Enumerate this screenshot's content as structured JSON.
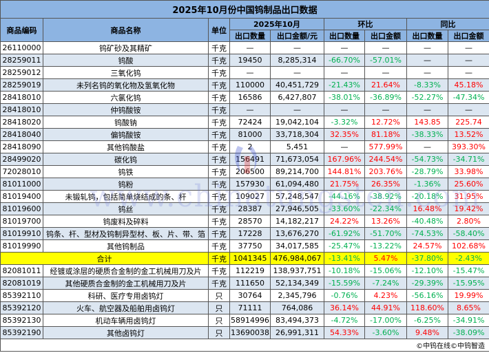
{
  "title": "2025年10月份中国钨制品出口数据",
  "headers": {
    "code": "商品编码",
    "name": "商品名称",
    "unit": "单位",
    "period": "2025年10月",
    "mom": "环比",
    "yoy": "同比",
    "qty": "出口数量",
    "amount": "出口金额/元",
    "qty2": "出口数量",
    "amount2": "出口金额"
  },
  "colors": {
    "header": "#8db4e2",
    "alt_row": "#dce6f1",
    "total_row": "#ffff00",
    "negative": "#00b050",
    "positive": "#ff0000"
  },
  "rows": [
    [
      "26110000",
      "钨矿砂及其精矿",
      "千克",
      "—",
      "—",
      "—",
      "—",
      "—",
      "—"
    ],
    [
      "28259011",
      "钨酸",
      "千克",
      "19450",
      "8,285,314",
      "-66.70%",
      "-57.01%",
      "—",
      "—"
    ],
    [
      "28259012",
      "三氧化钨",
      "千克",
      "—",
      "—",
      "—",
      "—",
      "—",
      "—"
    ],
    [
      "28259019",
      "未列名钨的氧化物及氢氧化物",
      "千克",
      "110000",
      "40,451,729",
      "-21.43%",
      "21.64%",
      "-8.33%",
      "45.18%"
    ],
    [
      "28418010",
      "六氯化钨",
      "千克",
      "16586",
      "6,427,807",
      "-38.01%",
      "-36.89%",
      "-52.27%",
      "-47.34%"
    ],
    [
      "28418010",
      "仲钨酸铵",
      "千克",
      "—",
      "—",
      "—",
      "—",
      "—",
      "—"
    ],
    [
      "28418020",
      "钨酸钠",
      "千克",
      "72424",
      "19,042,104",
      "-3.32%",
      "12.72%",
      "143.85",
      "225.74"
    ],
    [
      "28418040",
      "偏钨酸铵",
      "千克",
      "81000",
      "33,718,304",
      "32.35%",
      "81.18%",
      "-38.33%",
      "13.52%"
    ],
    [
      "28418090",
      "其他钨酸盐",
      "千克",
      "2",
      "5,451",
      "—",
      "577.99%",
      "—",
      "393.30%"
    ],
    [
      "28499020",
      "碳化钨",
      "千克",
      "156491",
      "71,673,054",
      "167.96%",
      "244.54%",
      "-54.73%",
      "-34.71%"
    ],
    [
      "72028010",
      "钨铁",
      "千克",
      "206500",
      "89,214,700",
      "144.81%",
      "203.76%",
      "-28.79%",
      "33.98%"
    ],
    [
      "81011000",
      "钨粉",
      "千克",
      "157930",
      "61,094,480",
      "21.75%",
      "26.35%",
      "-1.36%",
      "25.60%"
    ],
    [
      "81019400",
      "未锻轧钨，包括简单烧结成的条、杆",
      "千克",
      "109027",
      "57,248,547",
      "-44.16%",
      "-38.92%",
      "-20.18%",
      "31.95%"
    ],
    [
      "81019600",
      "钨丝",
      "千克",
      "28387",
      "27,946,505",
      "-33.60%",
      "-22.34%",
      "16.48%",
      "19.42%"
    ],
    [
      "81019700",
      "钨废料及碎料",
      "千克",
      "28570",
      "14,182,217",
      "24.22%",
      "13.26%",
      "-40.48%",
      "2.80%"
    ],
    [
      "81019910",
      "钨条、杆、型材及钨制异型材、板、片、带、箔",
      "千克",
      "17228",
      "13,676,270",
      "-61.92%",
      "-51.70%",
      "-74.53%",
      "-58.40%"
    ],
    [
      "81019990",
      "其他钨制品",
      "千克",
      "37750",
      "34,017,585",
      "-25.47%",
      "-13.22%",
      "24.57%",
      "102.68%"
    ],
    [
      "",
      "合计",
      "千克",
      "1041345",
      "476,984,067",
      "-13.41%",
      "5.47%",
      "-37.80%",
      "-2.43%"
    ],
    [
      "82081011",
      "经镀或涂层的硬质合金制的金工机械用刀及片",
      "千克",
      "112219",
      "138,937,751",
      "-10.18%",
      "-15.06%",
      "-12.10%",
      "-15.47%"
    ],
    [
      "82081019",
      "其他硬质合金制的金工机械用刀及片",
      "千克",
      "111650",
      "52,134,349",
      "-15.59%",
      "-7.24%",
      "-29.39%",
      "-15.95%"
    ],
    [
      "85392110",
      "科研、医疗专用卤钨灯",
      "只",
      "30764",
      "2,345,796",
      "-0.76%",
      "4.23%",
      "-56.16%",
      "19.99%"
    ],
    [
      "85392120",
      "火车、航空器及船舶用卤钨灯",
      "只",
      "71111",
      "764,086",
      "36.14%",
      "44.91%",
      "118.60%",
      "8.65%"
    ],
    [
      "85392130",
      "机动车辆用卤钨灯",
      "只",
      "58914996",
      "83,494,373",
      "-4.72%",
      "-17.00%",
      "-6.25%",
      "-34.91%"
    ],
    [
      "85392190",
      "其他卤钨灯",
      "只",
      "13690038",
      "26,991,311",
      "54.33%",
      "-3.60%",
      "9.48%",
      "-38.09%"
    ]
  ],
  "footer": "©中钨在线©中钨智造",
  "watermark": "www.chinatungsten.com"
}
